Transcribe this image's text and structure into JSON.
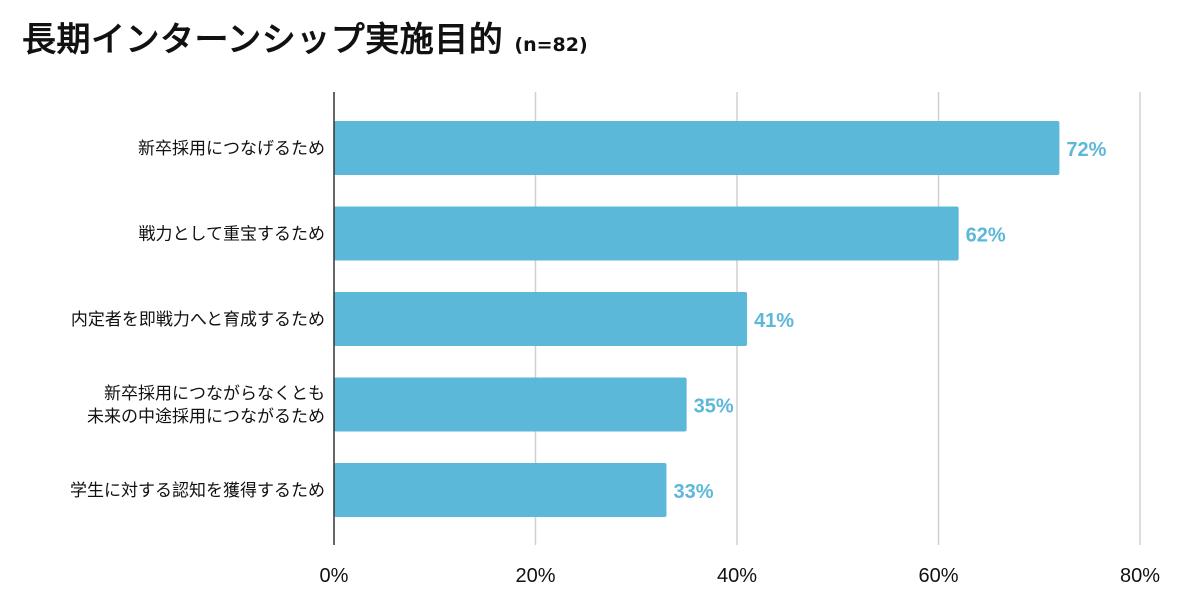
{
  "header": {
    "title": "長期インターンシップ実施目的",
    "sample_size": "(n=82)"
  },
  "chart_data": {
    "type": "bar",
    "orientation": "horizontal",
    "title": "長期インターンシップ実施目的",
    "subtitle": "(n=82)",
    "xlabel": "",
    "ylabel": "",
    "categories": [
      [
        "新卒採用につなげるため"
      ],
      [
        "戦力として重宝するため"
      ],
      [
        "内定者を即戦力へと育成するため"
      ],
      [
        "新卒採用につながらなくとも",
        "未来の中途採用につながるため"
      ],
      [
        "学生に対する認知を獲得するため"
      ]
    ],
    "values": [
      72,
      62,
      41,
      35,
      33
    ],
    "value_labels": [
      "72%",
      "62%",
      "41%",
      "35%",
      "33%"
    ],
    "xlim": [
      0,
      80
    ],
    "xticks": [
      0,
      20,
      40,
      60,
      80
    ],
    "xtick_labels": [
      "0%",
      "20%",
      "40%",
      "60%",
      "80%"
    ],
    "grid": true,
    "bar_color": "#5bb8d8",
    "label_color": "#5bb8d8",
    "grid_color": "#d0d0d0",
    "axis_color": "#333333"
  }
}
